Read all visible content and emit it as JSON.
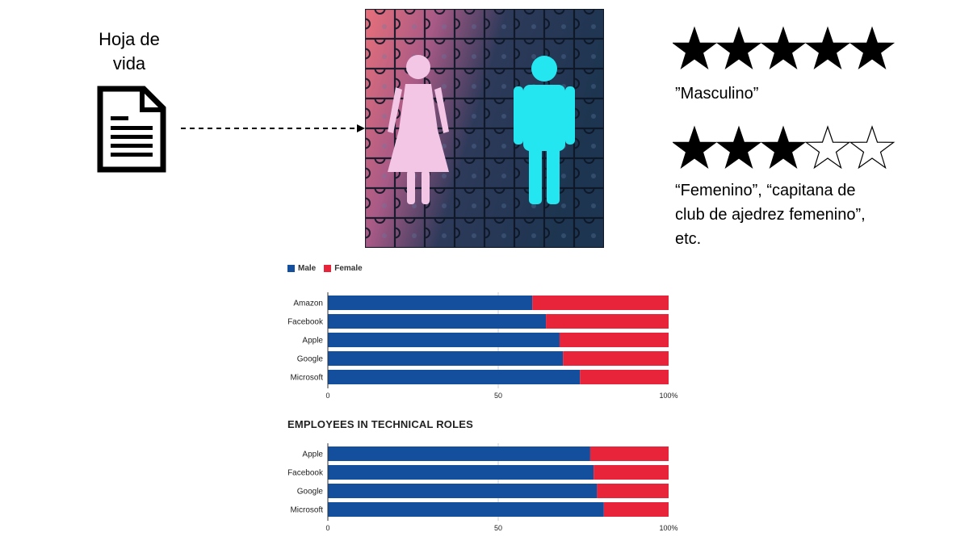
{
  "resume": {
    "title": "Hoja de\nvida",
    "icon": "document-icon"
  },
  "image": {
    "icon": "gender-puzzle-image"
  },
  "ratings": [
    {
      "filled": 5,
      "total": 5,
      "caption": "”Masculino”"
    },
    {
      "filled": 3,
      "total": 5,
      "caption": "“Femenino”, “capitana de club de ajedrez femenino”, etc."
    }
  ],
  "colors": {
    "male": "#134f9c",
    "female": "#e8243a"
  },
  "chart_data": [
    {
      "type": "bar",
      "orientation": "horizontal",
      "stacked": true,
      "title": "",
      "legend": [
        "Male",
        "Female"
      ],
      "legend_position": "top-left",
      "categories": [
        "Amazon",
        "Facebook",
        "Apple",
        "Google",
        "Microsoft"
      ],
      "series": [
        {
          "name": "Male",
          "values": [
            60,
            64,
            68,
            69,
            74
          ]
        },
        {
          "name": "Female",
          "values": [
            40,
            36,
            32,
            31,
            26
          ]
        }
      ],
      "xlim": [
        0,
        100
      ],
      "xticks": [
        "0",
        "50",
        "100%"
      ],
      "grid": true
    },
    {
      "type": "bar",
      "orientation": "horizontal",
      "stacked": true,
      "title": "EMPLOYEES IN TECHNICAL ROLES",
      "categories": [
        "Apple",
        "Facebook",
        "Google",
        "Microsoft"
      ],
      "series": [
        {
          "name": "Male",
          "values": [
            77,
            78,
            79,
            81
          ]
        },
        {
          "name": "Female",
          "values": [
            23,
            22,
            21,
            19
          ]
        }
      ],
      "xlim": [
        0,
        100
      ],
      "xticks": [
        "0",
        "50",
        "100%"
      ],
      "grid": true
    }
  ]
}
